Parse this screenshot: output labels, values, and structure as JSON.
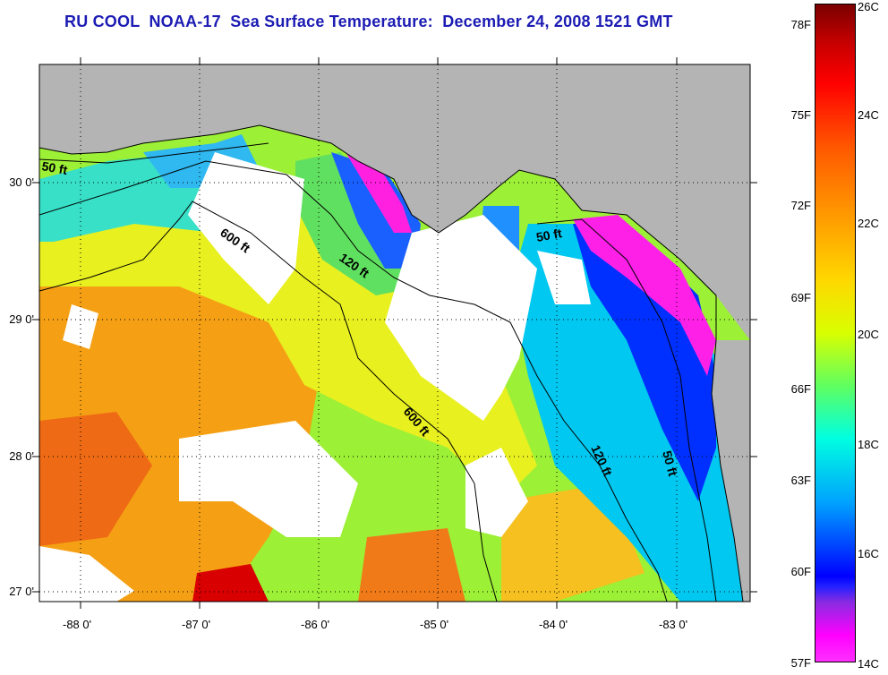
{
  "title": "RU COOL  NOAA-17  Sea Surface Temperature:  December 24, 2008 1521 GMT",
  "lat_labels": [
    "30 0'",
    "29 0'",
    "28 0'",
    "27 0'"
  ],
  "lon_labels": [
    "-88 0'",
    "-87 0'",
    "-86 0'",
    "-85 0'",
    "-84 0'",
    "-83 0'"
  ],
  "contour_labels": [
    "50 ft",
    "600 ft",
    "120 ft",
    "50 ft",
    "600 ft",
    "120 ft",
    "50 ft"
  ],
  "colorbar": {
    "fahrenheit": [
      "78F",
      "75F",
      "72F",
      "69F",
      "66F",
      "63F",
      "60F",
      "57F"
    ],
    "celsius": [
      "26C",
      "24C",
      "22C",
      "20C",
      "18C",
      "16C",
      "14C"
    ]
  },
  "colors": {
    "title": "#1c1cb4",
    "land": "#b4b4b4",
    "cloud": "#ffffff"
  }
}
